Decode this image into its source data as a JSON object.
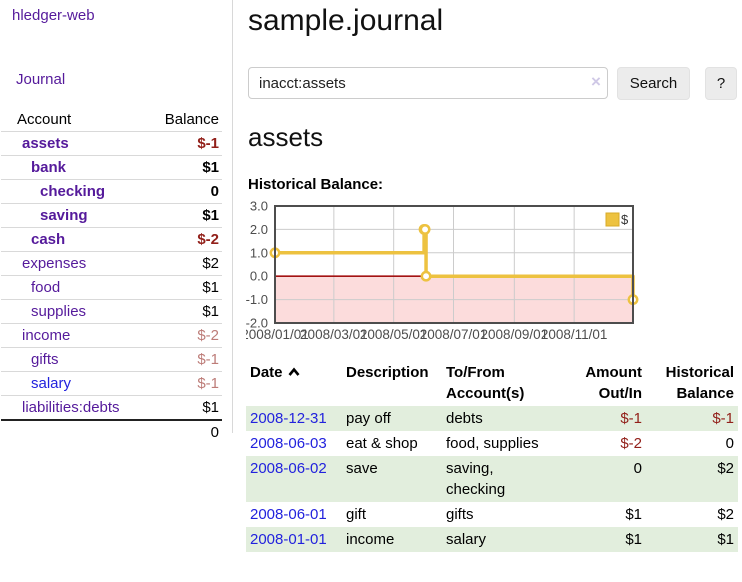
{
  "app": {
    "brand": "hledger-web"
  },
  "sidebar": {
    "journal_label": "Journal",
    "accounts_table": {
      "headers": {
        "account": "Account",
        "balance": "Balance"
      },
      "rows": [
        {
          "name": "assets",
          "balance": "$-1",
          "level": 1,
          "bold": true
        },
        {
          "name": "bank",
          "balance": "$1",
          "level": 2,
          "bold": true
        },
        {
          "name": "checking",
          "balance": "0",
          "level": 3,
          "bold": true
        },
        {
          "name": "saving",
          "balance": "$1",
          "level": 3,
          "bold": true
        },
        {
          "name": "cash",
          "balance": "$-2",
          "level": 2,
          "bold": true
        },
        {
          "name": "expenses",
          "balance": "$2",
          "level": 1,
          "bold": false
        },
        {
          "name": "food",
          "balance": "$1",
          "level": 2,
          "bold": false
        },
        {
          "name": "supplies",
          "balance": "$1",
          "level": 2,
          "bold": false
        },
        {
          "name": "income",
          "balance": "$-2",
          "level": 1,
          "bold": false
        },
        {
          "name": "gifts",
          "balance": "$-1",
          "level": 2,
          "bold": false
        },
        {
          "name": "salary",
          "balance": "$-1",
          "level": 2,
          "bold": false,
          "link": "blue"
        },
        {
          "name": "liabilities:debts",
          "balance": "$1",
          "level": 1,
          "bold": false
        }
      ],
      "total": "0"
    }
  },
  "header": {
    "title": "sample.journal"
  },
  "search": {
    "value": "inacct:assets",
    "clear_icon": "×",
    "button_label": "Search",
    "help_label": "?"
  },
  "account_page": {
    "heading": "assets",
    "chart_label": "Historical Balance:"
  },
  "chart_data": {
    "type": "line",
    "step": true,
    "series": [
      {
        "name": "$",
        "color": "#edc240",
        "x_dates": [
          "2008-01-01",
          "2008-06-01",
          "2008-06-02",
          "2008-06-03",
          "2008-12-31"
        ],
        "x_days": [
          0,
          152,
          153,
          154,
          365
        ],
        "values": [
          1,
          2,
          2,
          0,
          -1
        ]
      }
    ],
    "xrange_days": [
      0,
      365
    ],
    "ylim": [
      -2,
      3
    ],
    "yticks": [
      {
        "v": 3,
        "label": "3.0"
      },
      {
        "v": 2,
        "label": "2.0"
      },
      {
        "v": 1,
        "label": "1.0"
      },
      {
        "v": 0,
        "label": "0.0"
      },
      {
        "v": -1,
        "label": "-1.0"
      },
      {
        "v": -2,
        "label": "-2.0"
      }
    ],
    "xticks": [
      {
        "day": 0,
        "label": "2008/01/01"
      },
      {
        "day": 60,
        "label": "2008/03/01"
      },
      {
        "day": 121,
        "label": "2008/05/01"
      },
      {
        "day": 182,
        "label": "2008/07/01"
      },
      {
        "day": 244,
        "label": "2008/09/01"
      },
      {
        "day": 305,
        "label": "2008/11/01"
      }
    ],
    "legend_position": "top-right",
    "grid": true,
    "colors": {
      "line": "#edc240",
      "marker_fill": "#ffffff",
      "legend_box_border": "#d8ab29",
      "negative_region": "#fcdcdc",
      "zero_line": "#a31212",
      "grid": "#cccccc",
      "border": "#4d4d4d",
      "tick_text": "#4d4d4d"
    }
  },
  "register": {
    "headers": {
      "date": "Date",
      "description": "Description",
      "tofrom": "To/From Account(s)",
      "amount": "Amount Out/In",
      "balance": "Historical Balance"
    },
    "rows": [
      {
        "date": "2008-12-31",
        "description": "pay off",
        "accounts": "debts",
        "amount": "$-1",
        "balance": "$-1",
        "shade": true
      },
      {
        "date": "2008-06-03",
        "description": "eat & shop",
        "accounts": "food, supplies",
        "amount": "$-2",
        "balance": "0",
        "shade": false
      },
      {
        "date": "2008-06-02",
        "description": "save",
        "accounts": "saving, checking",
        "amount": "0",
        "balance": "$2",
        "shade": true
      },
      {
        "date": "2008-06-01",
        "description": "gift",
        "accounts": "gifts",
        "amount": "$1",
        "balance": "$2",
        "shade": false
      },
      {
        "date": "2008-01-01",
        "description": "income",
        "accounts": "salary",
        "amount": "$1",
        "balance": "$1",
        "shade": true
      }
    ]
  },
  "colors": {
    "link_purple": "#551a9b",
    "link_blue": "#2222dd",
    "negative_dark": "#92201a",
    "negative_light": "#bd7c78",
    "row_stripe_green": "#e2eedd"
  }
}
